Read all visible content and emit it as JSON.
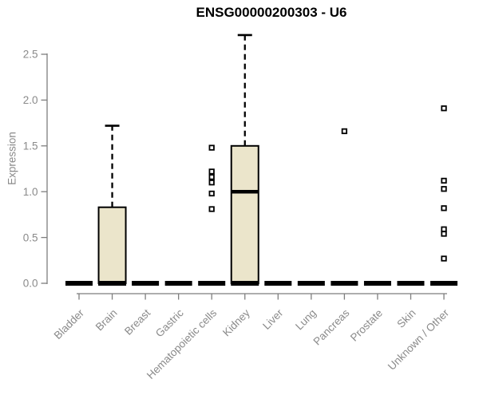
{
  "chart_data": {
    "type": "boxplot",
    "title": "ENSG00000200303 - U6",
    "ylabel": "Expression",
    "xlabel": "",
    "ylim": [
      0,
      2.75
    ],
    "yticks": [
      0.0,
      0.5,
      1.0,
      1.5,
      2.0,
      2.5
    ],
    "grid": false,
    "legend": "none",
    "categories": [
      "Bladder",
      "Brain",
      "Breast",
      "Gastric",
      "Hematopoietic cells",
      "Kidney",
      "Liver",
      "Lung",
      "Pancreas",
      "Prostate",
      "Skin",
      "Unknown / Other"
    ],
    "boxes": [
      {
        "label": "Bladder",
        "q1": 0,
        "median": 0,
        "q3": 0,
        "whisker_low": 0,
        "whisker_high": 0,
        "outliers": []
      },
      {
        "label": "Brain",
        "q1": 0,
        "median": 0,
        "q3": 0.83,
        "whisker_low": 0,
        "whisker_high": 1.72,
        "outliers": []
      },
      {
        "label": "Breast",
        "q1": 0,
        "median": 0,
        "q3": 0,
        "whisker_low": 0,
        "whisker_high": 0,
        "outliers": []
      },
      {
        "label": "Gastric",
        "q1": 0,
        "median": 0,
        "q3": 0,
        "whisker_low": 0,
        "whisker_high": 0,
        "outliers": []
      },
      {
        "label": "Hematopoietic cells",
        "q1": 0,
        "median": 0,
        "q3": 0,
        "whisker_low": 0,
        "whisker_high": 0,
        "outliers": [
          1.48,
          1.22,
          1.16,
          1.1,
          0.98,
          0.81
        ]
      },
      {
        "label": "Kidney",
        "q1": 0,
        "median": 1.0,
        "q3": 1.5,
        "whisker_low": 0,
        "whisker_high": 2.71,
        "outliers": []
      },
      {
        "label": "Liver",
        "q1": 0,
        "median": 0,
        "q3": 0,
        "whisker_low": 0,
        "whisker_high": 0,
        "outliers": []
      },
      {
        "label": "Lung",
        "q1": 0,
        "median": 0,
        "q3": 0,
        "whisker_low": 0,
        "whisker_high": 0,
        "outliers": []
      },
      {
        "label": "Pancreas",
        "q1": 0,
        "median": 0,
        "q3": 0,
        "whisker_low": 0,
        "whisker_high": 0,
        "outliers": [
          1.66
        ]
      },
      {
        "label": "Prostate",
        "q1": 0,
        "median": 0,
        "q3": 0,
        "whisker_low": 0,
        "whisker_high": 0,
        "outliers": []
      },
      {
        "label": "Skin",
        "q1": 0,
        "median": 0,
        "q3": 0,
        "whisker_low": 0,
        "whisker_high": 0,
        "outliers": []
      },
      {
        "label": "Unknown / Other",
        "q1": 0,
        "median": 0,
        "q3": 0,
        "whisker_low": 0,
        "whisker_high": 0,
        "outliers": [
          1.91,
          1.12,
          1.03,
          0.82,
          0.59,
          0.54,
          0.27
        ]
      }
    ],
    "colors": {
      "box_fill": "#ebe5cb",
      "box_border": "#000000",
      "median": "#000000",
      "outlier_fill": "#ffffff",
      "outlier_border": "#000000",
      "axis_line": "#7e7e7e",
      "axis_text": "#8a8a8a",
      "title_text": "#000000"
    }
  }
}
